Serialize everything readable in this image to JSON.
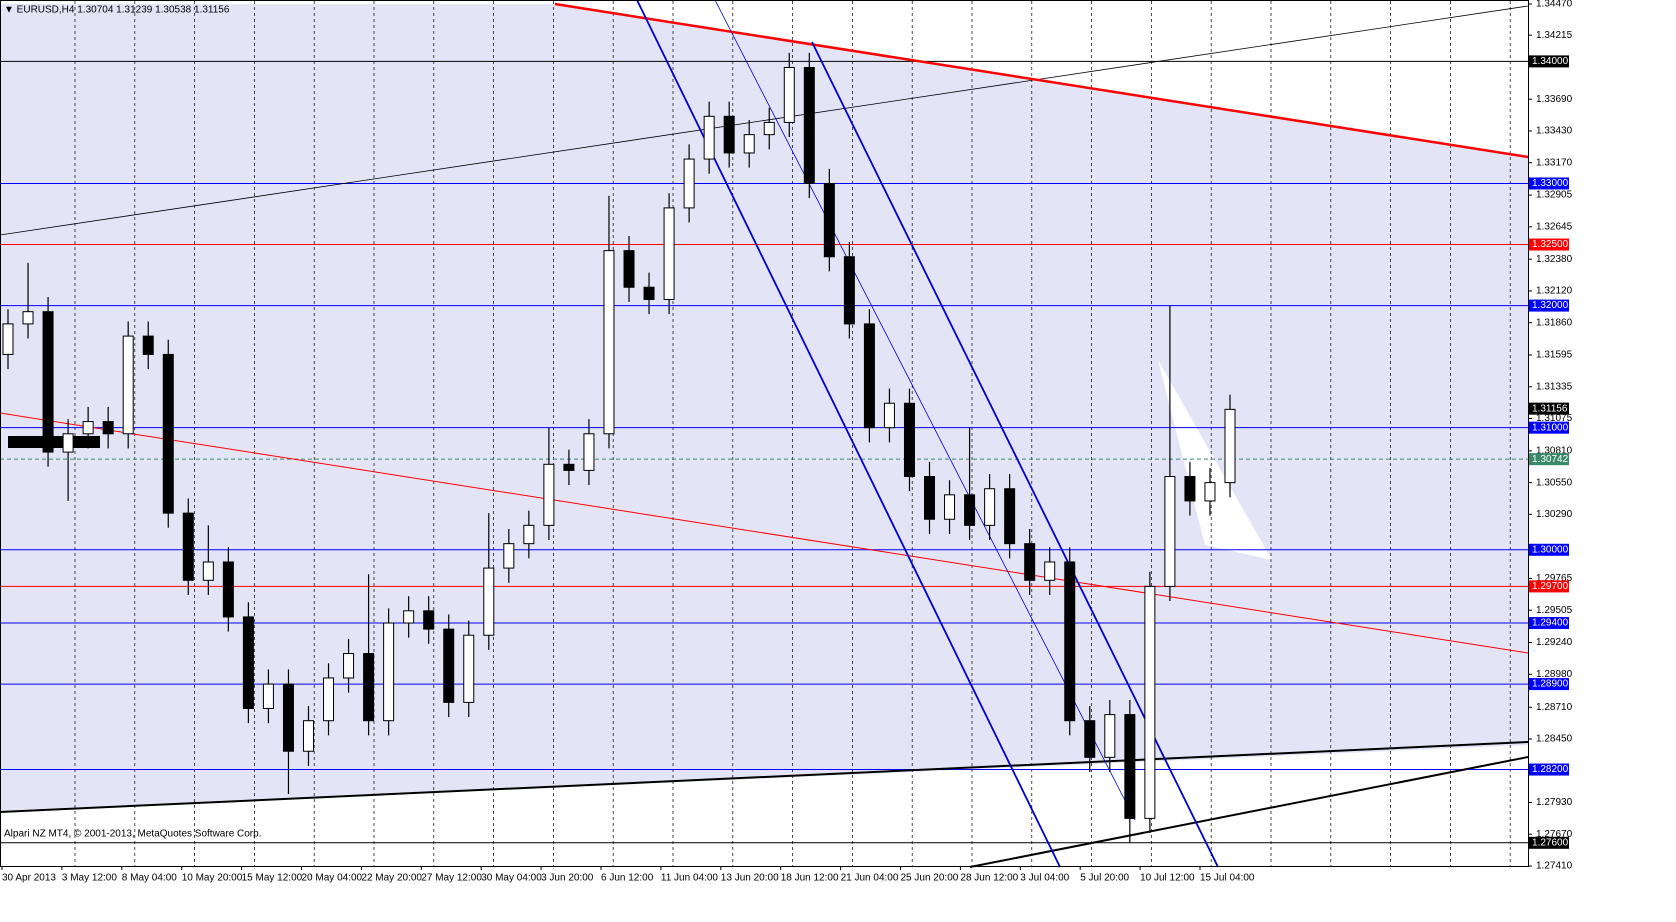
{
  "chart_data": {
    "type": "candlestick",
    "title": "▼ EURUSD,H4  1.30704 1.31239 1.30538 1.31156",
    "footer": "Alpari NZ MT4, © 2001-2013, MetaQuotes Software Corp.",
    "categories": [
      "30 Apr 2013",
      "3 May 12:00",
      "8 May 04:00",
      "10 May 20:00",
      "15 May 12:00",
      "20 May 04:00",
      "22 May 20:00",
      "27 May 12:00",
      "30 May 04:00",
      "3 Jun 20:00",
      "6 Jun 12:00",
      "11 Jun 04:00",
      "13 Jun 20:00",
      "18 Jun 12:00",
      "21 Jun 04:00",
      "25 Jun 20:00",
      "28 Jun 12:00",
      "3 Jul 04:00",
      "5 Jul 20:00",
      "10 Jul 12:00",
      "15 Jul 04:00"
    ],
    "ohlc": {
      "open": [
        1.316,
        1.3185,
        1.3195,
        1.308,
        1.3095,
        1.3105,
        1.3095,
        1.3175,
        1.316,
        1.303,
        1.2975,
        1.299,
        1.2945,
        1.287,
        1.289,
        1.2835,
        1.286,
        1.2895,
        1.2915,
        1.286,
        1.294,
        1.295,
        1.2935,
        1.2875,
        1.293,
        1.2985,
        1.3005,
        1.302,
        1.307,
        1.3065,
        1.3095,
        1.3245,
        1.3215,
        1.3205,
        1.328,
        1.332,
        1.3355,
        1.3325,
        1.334,
        1.335,
        1.3395,
        1.33,
        1.324,
        1.3185,
        1.31,
        1.312,
        1.306,
        1.3025,
        1.3045,
        1.302,
        1.305,
        1.3005,
        1.2975,
        1.299,
        1.286,
        1.283,
        1.2865,
        1.278,
        1.297,
        1.306,
        1.304,
        1.3055
      ],
      "high": [
        1.3197,
        1.3235,
        1.3207,
        1.3107,
        1.3117,
        1.3117,
        1.3187,
        1.3187,
        1.3172,
        1.3042,
        1.302,
        1.3002,
        1.2957,
        1.2902,
        1.2902,
        1.2872,
        1.2907,
        1.2927,
        1.298,
        1.2952,
        1.2962,
        1.2962,
        1.2947,
        1.2942,
        1.303,
        1.3017,
        1.3032,
        1.31,
        1.3082,
        1.3107,
        1.329,
        1.3257,
        1.3227,
        1.3292,
        1.3332,
        1.3367,
        1.3367,
        1.3352,
        1.3362,
        1.3407,
        1.3407,
        1.3312,
        1.3252,
        1.3197,
        1.3132,
        1.3132,
        1.3072,
        1.3057,
        1.31,
        1.3062,
        1.3062,
        1.3017,
        1.3002,
        1.3002,
        1.2872,
        1.2877,
        1.2877,
        1.2982,
        1.32,
        1.3072,
        1.3067,
        1.3127
      ],
      "low": [
        1.3148,
        1.3173,
        1.3068,
        1.304,
        1.3083,
        1.3083,
        1.3083,
        1.3148,
        1.3018,
        1.2963,
        1.2963,
        1.2933,
        1.2858,
        1.2858,
        1.28,
        1.2823,
        1.2848,
        1.2883,
        1.2848,
        1.2848,
        1.2928,
        1.2923,
        1.2863,
        1.2863,
        1.2918,
        1.2973,
        1.2993,
        1.3008,
        1.3053,
        1.3053,
        1.3083,
        1.3203,
        1.3193,
        1.3193,
        1.3268,
        1.3308,
        1.3313,
        1.3313,
        1.3328,
        1.3338,
        1.3288,
        1.3228,
        1.3173,
        1.3088,
        1.3088,
        1.3048,
        1.3013,
        1.3013,
        1.3008,
        1.3008,
        1.2993,
        1.2963,
        1.2963,
        1.2848,
        1.2818,
        1.2818,
        1.276,
        1.2768,
        1.2958,
        1.3028,
        1.3028,
        1.3043
      ],
      "close": [
        1.3185,
        1.3195,
        1.308,
        1.3095,
        1.3105,
        1.3095,
        1.3175,
        1.316,
        1.303,
        1.2975,
        1.299,
        1.2945,
        1.287,
        1.289,
        1.2835,
        1.286,
        1.2895,
        1.2915,
        1.286,
        1.294,
        1.295,
        1.2935,
        1.2875,
        1.293,
        1.2985,
        1.3005,
        1.302,
        1.307,
        1.3065,
        1.3095,
        1.3245,
        1.3215,
        1.3205,
        1.328,
        1.332,
        1.3355,
        1.3325,
        1.334,
        1.335,
        1.3395,
        1.33,
        1.324,
        1.3185,
        1.31,
        1.312,
        1.306,
        1.3025,
        1.3045,
        1.302,
        1.305,
        1.3005,
        1.2975,
        1.299,
        1.286,
        1.283,
        1.2865,
        1.278,
        1.297,
        1.306,
        1.304,
        1.3055,
        1.3115
      ]
    },
    "ylim": [
      1.2741,
      1.3447
    ],
    "yticks": [
      {
        "value": 1.3447,
        "label": "1.34470"
      },
      {
        "value": 1.34215,
        "label": "1.34215"
      },
      {
        "value": 1.3369,
        "label": "1.33690"
      },
      {
        "value": 1.3343,
        "label": "1.33430"
      },
      {
        "value": 1.3317,
        "label": "1.33170"
      },
      {
        "value": 1.32905,
        "label": "1.32905"
      },
      {
        "value": 1.32645,
        "label": "1.32645"
      },
      {
        "value": 1.3238,
        "label": "1.32380"
      },
      {
        "value": 1.3212,
        "label": "1.32120"
      },
      {
        "value": 1.3186,
        "label": "1.31860"
      },
      {
        "value": 1.31595,
        "label": "1.31595"
      },
      {
        "value": 1.31335,
        "label": "1.31335"
      },
      {
        "value": 1.31075,
        "label": "1.31075"
      },
      {
        "value": 1.3081,
        "label": "1.30810"
      },
      {
        "value": 1.3055,
        "label": "1.30550"
      },
      {
        "value": 1.3029,
        "label": "1.30290"
      },
      {
        "value": 1.29765,
        "label": "1.29765"
      },
      {
        "value": 1.29505,
        "label": "1.29505"
      },
      {
        "value": 1.2924,
        "label": "1.29240"
      },
      {
        "value": 1.2898,
        "label": "1.28980"
      },
      {
        "value": 1.2871,
        "label": "1.28710"
      },
      {
        "value": 1.2845,
        "label": "1.28450"
      },
      {
        "value": 1.2793,
        "label": "1.27930"
      },
      {
        "value": 1.2767,
        "label": "1.27670"
      },
      {
        "value": 1.2741,
        "label": "1.27410"
      }
    ],
    "levels": [
      {
        "value": 1.34,
        "label": "1.34000",
        "color": "#000000"
      },
      {
        "value": 1.33,
        "label": "1.33000",
        "color": "#0000ff"
      },
      {
        "value": 1.325,
        "label": "1.32500",
        "color": "#ff0000"
      },
      {
        "value": 1.32,
        "label": "1.32000",
        "color": "#0000ff"
      },
      {
        "value": 1.31,
        "label": "1.31000",
        "color": "#0000ff"
      },
      {
        "value": 1.30742,
        "label": "1.30742",
        "color": "#3a8a6a",
        "dashed": true
      },
      {
        "value": 1.3,
        "label": "1.30000",
        "color": "#0000ff"
      },
      {
        "value": 1.297,
        "label": "1.29700",
        "color": "#ff0000"
      },
      {
        "value": 1.294,
        "label": "1.29400",
        "color": "#0000ff"
      },
      {
        "value": 1.289,
        "label": "1.28900",
        "color": "#0000ff"
      },
      {
        "value": 1.282,
        "label": "1.28200",
        "color": "#0000ff"
      },
      {
        "value": 1.276,
        "label": "1.27600",
        "color": "#000000"
      }
    ],
    "price": {
      "value": 1.31156,
      "label": "1.31156",
      "color": "#000000"
    },
    "grid": true
  }
}
